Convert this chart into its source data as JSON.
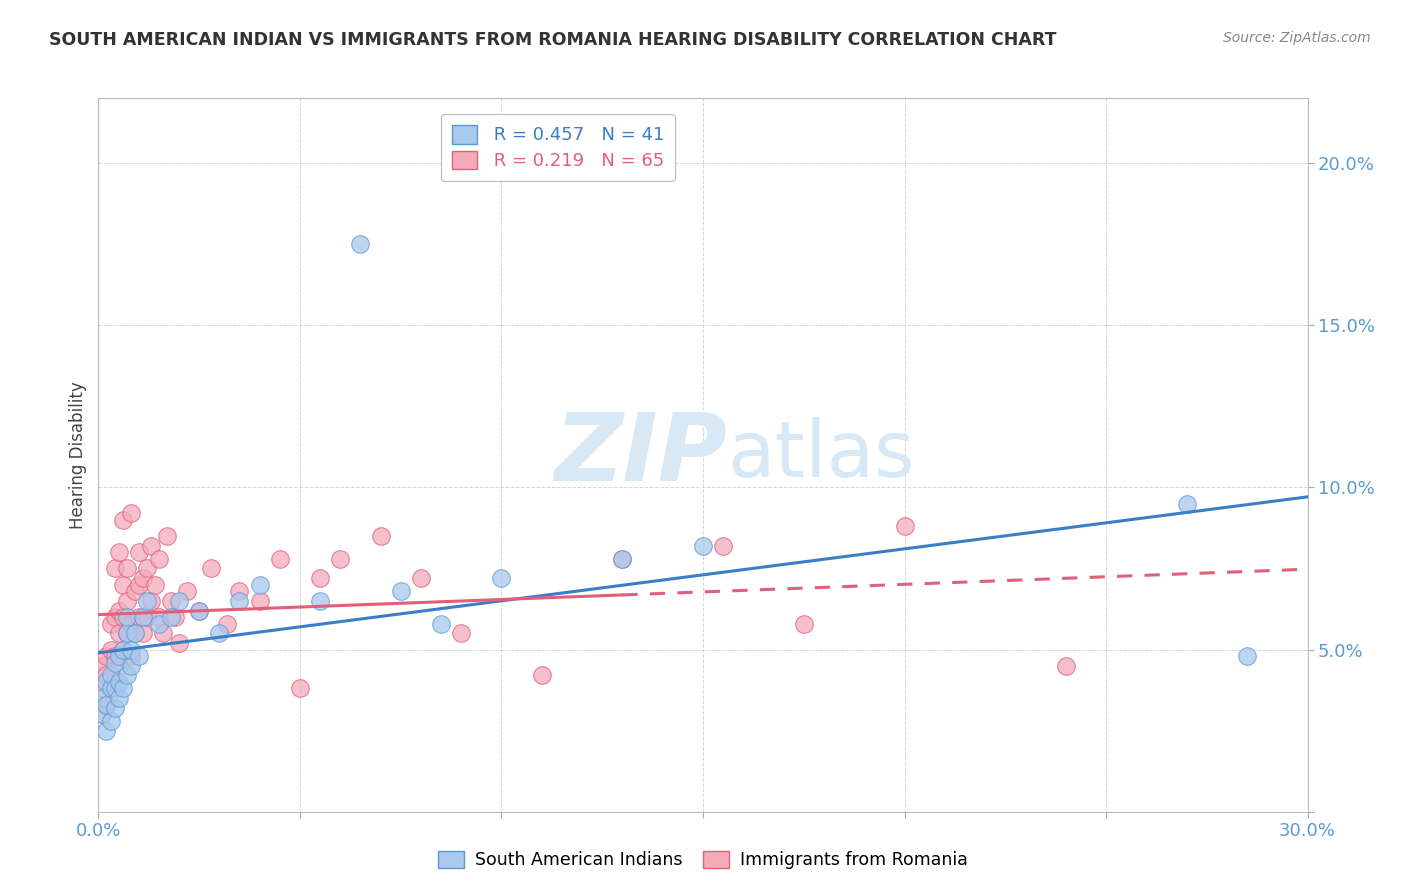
{
  "title": "SOUTH AMERICAN INDIAN VS IMMIGRANTS FROM ROMANIA HEARING DISABILITY CORRELATION CHART",
  "source": "Source: ZipAtlas.com",
  "ylabel": "Hearing Disability",
  "xlim": [
    0.0,
    0.3
  ],
  "ylim": [
    0.0,
    0.22
  ],
  "series1_label": "South American Indians",
  "series1_R": "0.457",
  "series1_N": "41",
  "series1_color": "#A8C8EE",
  "series1_edge_color": "#5B9BD5",
  "series2_label": "Immigrants from Romania",
  "series2_R": "0.219",
  "series2_N": "65",
  "series2_color": "#F4AABB",
  "series2_edge_color": "#E0607A",
  "series1_line_color": "#3A7EC8",
  "series2_line_color": "#E0607A",
  "background_color": "#FFFFFF",
  "watermark_color": "#D8E8F5",
  "grid_color": "#CCCCCC",
  "tick_color": "#5B9BD5",
  "title_color": "#333333",
  "source_color": "#888888",
  "series1_x": [
    0.001,
    0.001,
    0.002,
    0.002,
    0.002,
    0.003,
    0.003,
    0.003,
    0.004,
    0.004,
    0.004,
    0.005,
    0.005,
    0.005,
    0.006,
    0.006,
    0.007,
    0.007,
    0.007,
    0.008,
    0.008,
    0.009,
    0.01,
    0.011,
    0.012,
    0.015,
    0.018,
    0.02,
    0.025,
    0.03,
    0.035,
    0.04,
    0.055,
    0.065,
    0.075,
    0.085,
    0.1,
    0.13,
    0.15,
    0.27,
    0.285
  ],
  "series1_y": [
    0.03,
    0.035,
    0.025,
    0.033,
    0.04,
    0.028,
    0.038,
    0.042,
    0.032,
    0.038,
    0.046,
    0.035,
    0.04,
    0.048,
    0.038,
    0.05,
    0.042,
    0.055,
    0.06,
    0.045,
    0.05,
    0.055,
    0.048,
    0.06,
    0.065,
    0.058,
    0.06,
    0.065,
    0.062,
    0.055,
    0.065,
    0.07,
    0.065,
    0.175,
    0.068,
    0.058,
    0.072,
    0.078,
    0.082,
    0.095,
    0.048
  ],
  "series2_x": [
    0.001,
    0.001,
    0.001,
    0.002,
    0.002,
    0.002,
    0.003,
    0.003,
    0.003,
    0.004,
    0.004,
    0.004,
    0.004,
    0.005,
    0.005,
    0.005,
    0.005,
    0.006,
    0.006,
    0.006,
    0.006,
    0.007,
    0.007,
    0.007,
    0.008,
    0.008,
    0.008,
    0.009,
    0.009,
    0.01,
    0.01,
    0.01,
    0.011,
    0.011,
    0.012,
    0.012,
    0.013,
    0.013,
    0.014,
    0.015,
    0.015,
    0.016,
    0.017,
    0.018,
    0.019,
    0.02,
    0.022,
    0.025,
    0.028,
    0.032,
    0.035,
    0.04,
    0.045,
    0.05,
    0.055,
    0.06,
    0.07,
    0.08,
    0.09,
    0.11,
    0.13,
    0.155,
    0.175,
    0.2,
    0.24
  ],
  "series2_y": [
    0.03,
    0.038,
    0.045,
    0.033,
    0.042,
    0.048,
    0.038,
    0.05,
    0.058,
    0.04,
    0.048,
    0.06,
    0.075,
    0.045,
    0.055,
    0.062,
    0.08,
    0.05,
    0.06,
    0.07,
    0.09,
    0.055,
    0.065,
    0.075,
    0.048,
    0.058,
    0.092,
    0.055,
    0.068,
    0.06,
    0.07,
    0.08,
    0.055,
    0.072,
    0.06,
    0.075,
    0.065,
    0.082,
    0.07,
    0.06,
    0.078,
    0.055,
    0.085,
    0.065,
    0.06,
    0.052,
    0.068,
    0.062,
    0.075,
    0.058,
    0.068,
    0.065,
    0.078,
    0.038,
    0.072,
    0.078,
    0.085,
    0.072,
    0.055,
    0.042,
    0.078,
    0.082,
    0.058,
    0.088,
    0.045
  ]
}
